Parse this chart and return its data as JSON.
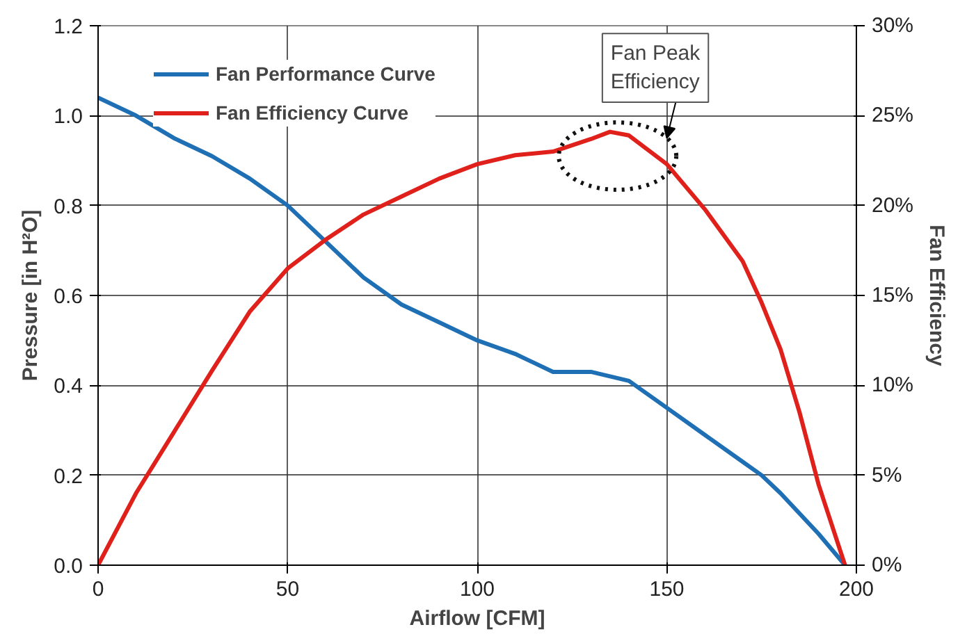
{
  "chart_data": {
    "type": "line",
    "xlabel": "Airflow [CFM]",
    "ylabel": "Pressure [in H²O]",
    "y2label": "Fan Efficiency",
    "xlim": [
      0,
      200
    ],
    "xticks": [
      0,
      50,
      100,
      150,
      200
    ],
    "ylim": [
      0,
      1.2
    ],
    "yticks": [
      {
        "value": 0,
        "label": "0.0"
      },
      {
        "value": 0.2,
        "label": "0.2"
      },
      {
        "value": 0.4,
        "label": "0.4"
      },
      {
        "value": 0.6,
        "label": "0.6"
      },
      {
        "value": 0.8,
        "label": "0.8"
      },
      {
        "value": 1.0,
        "label": "1.0"
      },
      {
        "value": 1.2,
        "label": "1.2"
      }
    ],
    "y2lim": [
      0,
      30
    ],
    "y2ticks": [
      {
        "value": 0,
        "label": "0%"
      },
      {
        "value": 5,
        "label": "5%"
      },
      {
        "value": 10,
        "label": "10%"
      },
      {
        "value": 15,
        "label": "15%"
      },
      {
        "value": 20,
        "label": "20%"
      },
      {
        "value": 25,
        "label": "25%"
      },
      {
        "value": 30,
        "label": "30%"
      }
    ],
    "grid": true,
    "legend": "top left",
    "marker": "none",
    "line_style": "solid",
    "series": [
      {
        "name": "Fan Performance Curve",
        "color": "#1f6fb5",
        "x": [
          0,
          10,
          20,
          30,
          40,
          50,
          60,
          70,
          80,
          90,
          100,
          110,
          120,
          130,
          140,
          150,
          160,
          170,
          175,
          180,
          190,
          197
        ],
        "values": [
          1.04,
          1.0,
          0.95,
          0.91,
          0.86,
          0.8,
          0.72,
          0.64,
          0.58,
          0.54,
          0.5,
          0.47,
          0.43,
          0.43,
          0.41,
          0.35,
          0.29,
          0.23,
          0.2,
          0.16,
          0.07,
          0
        ]
      },
      {
        "name": "Fan Efficiency Curve",
        "color": "#e0201b",
        "axis": "y2",
        "x": [
          0,
          10,
          20,
          30,
          40,
          50,
          60,
          70,
          80,
          90,
          100,
          110,
          120,
          130,
          135,
          140,
          150,
          160,
          170,
          175,
          180,
          185,
          190,
          197
        ],
        "values": [
          0,
          4.0,
          7.4,
          10.8,
          14.1,
          16.5,
          18.1,
          19.5,
          20.5,
          21.5,
          22.3,
          22.8,
          23.0,
          23.7,
          24.1,
          23.9,
          22.3,
          19.8,
          16.9,
          14.6,
          12.0,
          8.5,
          4.5,
          0
        ]
      }
    ],
    "annotations": [
      {
        "text": "Fan Peak\nEfficiency",
        "x": 137,
        "y": 0.96
      }
    ]
  }
}
